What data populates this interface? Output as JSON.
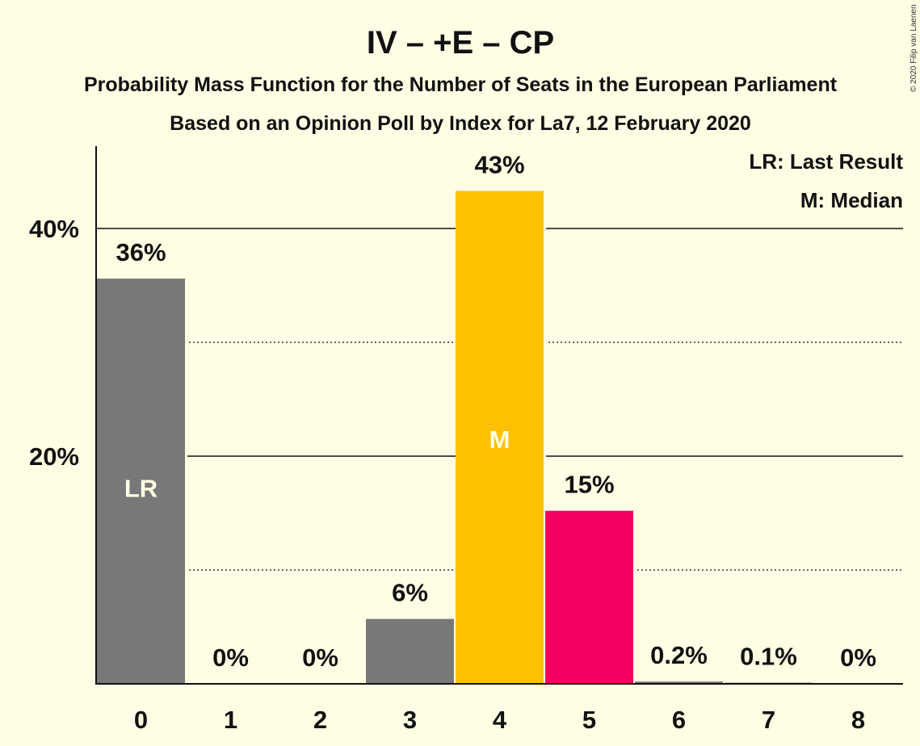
{
  "chart_data": {
    "type": "bar",
    "title": "IV – +E – CP",
    "subtitle1": "Probability Mass Function for the Number of Seats in the European Parliament",
    "subtitle2": "Based on an Opinion Poll by Index for La7, 12 February 2020",
    "copyright": "© 2020 Filip van Laenen",
    "legend": {
      "lr": "LR: Last Result",
      "median": "M: Median"
    },
    "categories": [
      "0",
      "1",
      "2",
      "3",
      "4",
      "5",
      "6",
      "7",
      "8"
    ],
    "values": [
      35.6,
      0,
      0,
      5.7,
      43.3,
      15.2,
      0.2,
      0.1,
      0
    ],
    "labels": [
      "36%",
      "0%",
      "0%",
      "6%",
      "43%",
      "15%",
      "0.2%",
      "0.1%",
      "0%"
    ],
    "colors": [
      "#787878",
      "#787878",
      "#787878",
      "#787878",
      "#FFC000",
      "#F50062",
      "#787878",
      "#787878",
      "#787878"
    ],
    "marks": [
      {
        "index": 0,
        "text": "LR"
      },
      {
        "index": 4,
        "text": "M"
      }
    ],
    "yticks": [
      {
        "value": 20,
        "label": "20%"
      },
      {
        "value": 40,
        "label": "40%"
      }
    ],
    "minor_gridlines": [
      10,
      30
    ],
    "ylim": [
      0,
      47.2
    ]
  }
}
